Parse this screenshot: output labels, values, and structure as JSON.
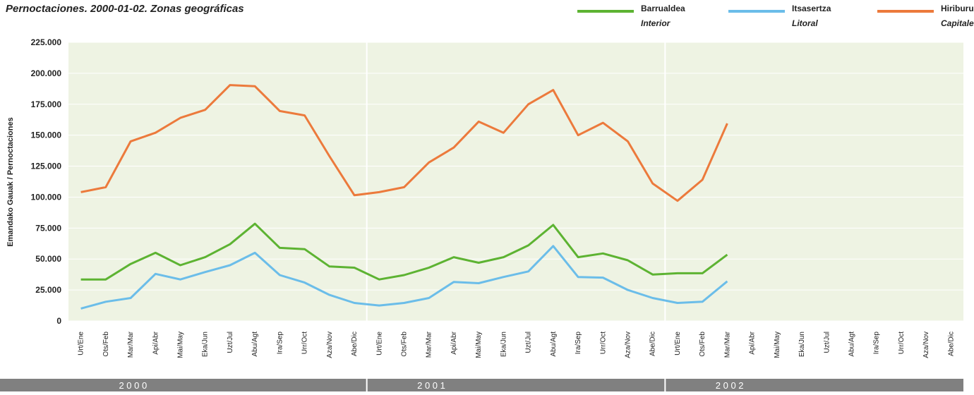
{
  "chart_data": {
    "type": "line",
    "title": "Pernoctaciones. 2000-01-02. Zonas geográficas",
    "y_label": "Emandako Gauak / Pernoctaciones",
    "categories": [
      "Urt/Ene",
      "Ots/Feb",
      "Mar/Mar",
      "Api/Abr",
      "Mai/May",
      "Eka/Jun",
      "Uzt/Jul",
      "Abu/Agt",
      "Ira/Sep",
      "Urr/Oct",
      "Aza/Nov",
      "Abe/Dic",
      "Urt/Ene",
      "Ots/Feb",
      "Mar/Mar",
      "Api/Abr",
      "Mai/May",
      "Eka/Jun",
      "Uzt/Jul",
      "Abu/Agt",
      "Ira/Sep",
      "Urr/Oct",
      "Aza/Nov",
      "Abe/Dic",
      "Urt/Ene",
      "Ots/Feb",
      "Mar/Mar",
      "Api/Abr",
      "Mai/May",
      "Eka/Jun",
      "Uzt/Jul",
      "Abu/Agt",
      "Ira/Sep",
      "Urr/Oct",
      "Aza/Nov",
      "Abe/Dic"
    ],
    "groups": [
      "2 0 0 0",
      "2 0 0 1",
      "2 0 0 2"
    ],
    "series": [
      {
        "name": "Barrualdea",
        "name_es": "Interior",
        "color": "#5db332",
        "values": [
          33500,
          33500,
          46000,
          55000,
          45000,
          51500,
          62000,
          78500,
          59000,
          58000,
          44000,
          43000,
          33500,
          37000,
          43000,
          51500,
          47000,
          51500,
          61000,
          77500,
          51500,
          54500,
          49000,
          37500,
          38500,
          38500,
          53500,
          null,
          null,
          null,
          null,
          null,
          null,
          null,
          null,
          null
        ]
      },
      {
        "name": "Itsasertza",
        "name_es": "Litoral",
        "color": "#6bbde9",
        "values": [
          10000,
          15500,
          18500,
          38000,
          33500,
          39500,
          45000,
          55000,
          37000,
          31000,
          21000,
          14500,
          12500,
          14500,
          18500,
          31500,
          30500,
          35500,
          40000,
          60500,
          35500,
          35000,
          25000,
          18500,
          14500,
          15500,
          32000,
          null,
          null,
          null,
          null,
          null,
          null,
          null,
          null,
          null
        ]
      },
      {
        "name": "Hiriburu",
        "name_es": "Capitales",
        "color": "#ec7a3c",
        "values": [
          104000,
          108000,
          145000,
          152000,
          164000,
          170500,
          190500,
          189500,
          169500,
          166000,
          133000,
          101500,
          104000,
          108000,
          128000,
          140000,
          161000,
          152000,
          175000,
          186500,
          150000,
          160000,
          145000,
          111000,
          97000,
          114000,
          159500,
          null,
          null,
          null,
          null,
          null,
          null,
          null,
          null,
          null
        ]
      }
    ],
    "ylim": [
      0,
      225000
    ],
    "yticks": [
      0,
      {
        "value": 25000,
        "label": "25.000"
      },
      {
        "value": 50000,
        "label": "50.000"
      },
      {
        "value": 75000,
        "label": "75.000"
      },
      {
        "value": 100000,
        "label": "100.000"
      },
      {
        "value": 125000,
        "label": "125.000"
      },
      {
        "value": 150000,
        "label": "150.000"
      },
      {
        "value": 175000,
        "label": "175.000"
      },
      {
        "value": 200000,
        "label": "200.000"
      },
      {
        "value": 225000,
        "label": "225.000"
      }
    ],
    "grid": true
  }
}
